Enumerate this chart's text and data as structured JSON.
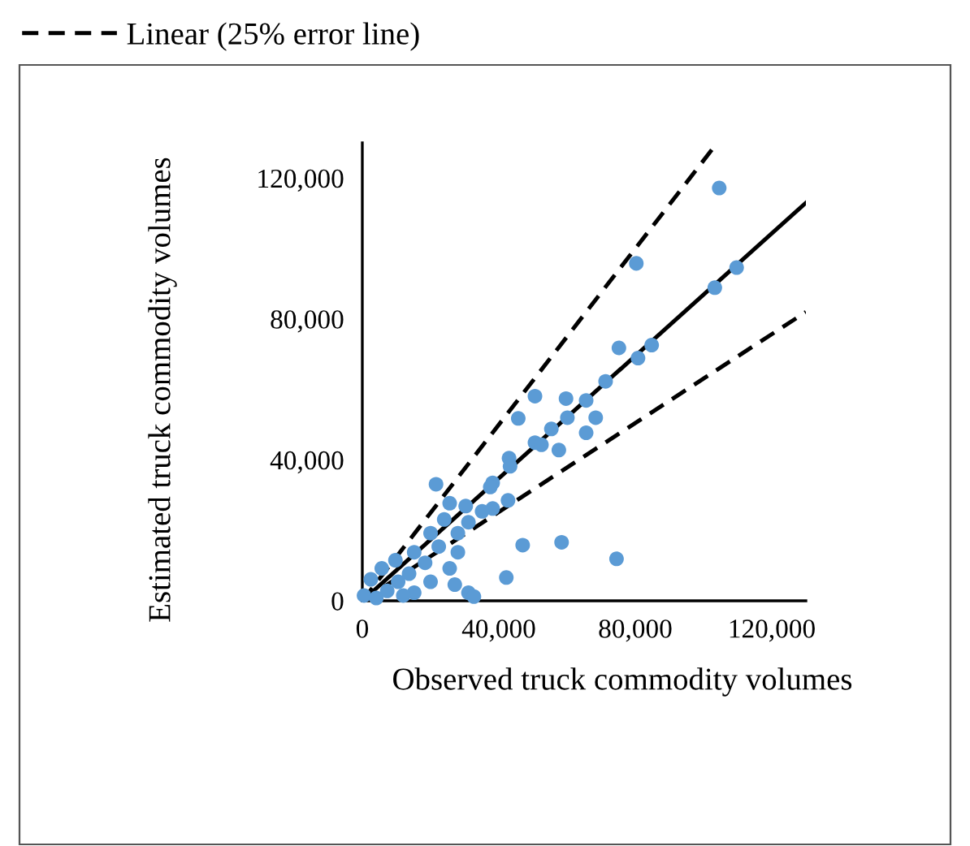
{
  "chart_data": {
    "type": "scatter",
    "xlabel": "Observed truck commodity volumes",
    "ylabel": "Estimated truck commodity volumes",
    "xlim": [
      0,
      130000
    ],
    "ylim": [
      0,
      130000
    ],
    "xticks": [
      {
        "value": 0,
        "label": "0"
      },
      {
        "value": 40000,
        "label": "40,000"
      },
      {
        "value": 80000,
        "label": "80,000"
      },
      {
        "value": 120000,
        "label": "120,000"
      }
    ],
    "yticks": [
      {
        "value": 0,
        "label": "0"
      },
      {
        "value": 40000,
        "label": "40,000"
      },
      {
        "value": 80000,
        "label": "80,000"
      },
      {
        "value": 120000,
        "label": "120,000"
      }
    ],
    "grid": false,
    "legend": "top left",
    "marker": "circle",
    "series": [
      {
        "color": "#5b9bd5",
        "x": [
          104600,
          80300,
          109700,
          103300,
          75200,
          84800,
          80800,
          71300,
          50600,
          59700,
          65600,
          45700,
          60100,
          68400,
          55400,
          65600,
          50600,
          52500,
          57600,
          43000,
          43300,
          38200,
          42700,
          38200,
          47000,
          58400,
          74500,
          42200,
          21600,
          37500,
          25600,
          30300,
          35100,
          31100,
          24000,
          20000,
          28000,
          22400,
          15200,
          28000,
          9700,
          18400,
          5700,
          25600,
          13700,
          2500,
          10500,
          20000,
          27100,
          7300,
          15200,
          31100,
          500,
          12000,
          32700,
          4100
        ],
        "values": [
          117200,
          95800,
          94600,
          88900,
          71800,
          72600,
          68900,
          62300,
          58100,
          57400,
          56900,
          51800,
          52000,
          52000,
          48800,
          47700,
          44900,
          44300,
          42800,
          40500,
          38200,
          33500,
          28500,
          26200,
          15800,
          16600,
          11900,
          6600,
          33100,
          32300,
          27700,
          26900,
          25400,
          22300,
          23100,
          19200,
          19200,
          15400,
          13800,
          13800,
          11500,
          10800,
          9200,
          9200,
          7700,
          6100,
          5400,
          5400,
          4600,
          2800,
          2300,
          2300,
          1500,
          1500,
          1200,
          800
        ]
      },
      {
        "type": "line",
        "name": "Linear (25% error line)",
        "color": "#000000",
        "line_style": "dashed",
        "marker": "none",
        "x": [
          0,
          104000
        ],
        "values": [
          0,
          130000
        ]
      },
      {
        "type": "line",
        "color": "#000000",
        "line_style": "solid",
        "marker": "none",
        "x": [
          0,
          130000
        ],
        "values": [
          0,
          113000
        ]
      },
      {
        "type": "line",
        "color": "#000000",
        "line_style": "dashed",
        "marker": "none",
        "x": [
          0,
          130000
        ],
        "values": [
          0,
          82000
        ]
      }
    ]
  }
}
